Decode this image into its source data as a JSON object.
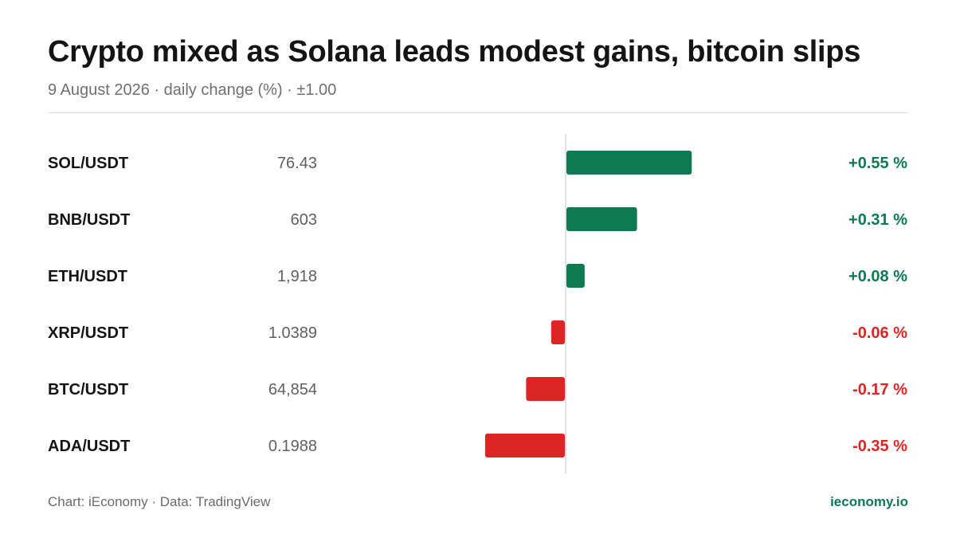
{
  "header": {
    "title": "Crypto mixed as Solana leads modest gains, bitcoin slips",
    "subtitle": "9 August 2026 · daily change (%) · ±1.00"
  },
  "footer": {
    "source": "Chart: iEconomy · Data: TradingView",
    "brand": "ieconomy.io"
  },
  "colors": {
    "positive": "#0d7a52",
    "negative": "#dc2626",
    "axis": "#d9d9d9"
  },
  "chart_data": {
    "type": "bar",
    "orientation": "horizontal",
    "categories": [
      "SOL/USDT",
      "BNB/USDT",
      "ETH/USDT",
      "XRP/USDT",
      "BTC/USDT",
      "ADA/USDT"
    ],
    "prices": [
      "76.43",
      "603",
      "1,918",
      "1.0389",
      "64,854",
      "0.1988"
    ],
    "values": [
      0.55,
      0.31,
      0.08,
      -0.06,
      -0.17,
      -0.35
    ],
    "value_labels": [
      "+0.55 %",
      "+0.31 %",
      "+0.08 %",
      "-0.06 %",
      "-0.17 %",
      "-0.35 %"
    ],
    "xlim": [
      -1.0,
      1.0
    ],
    "grid": false
  }
}
